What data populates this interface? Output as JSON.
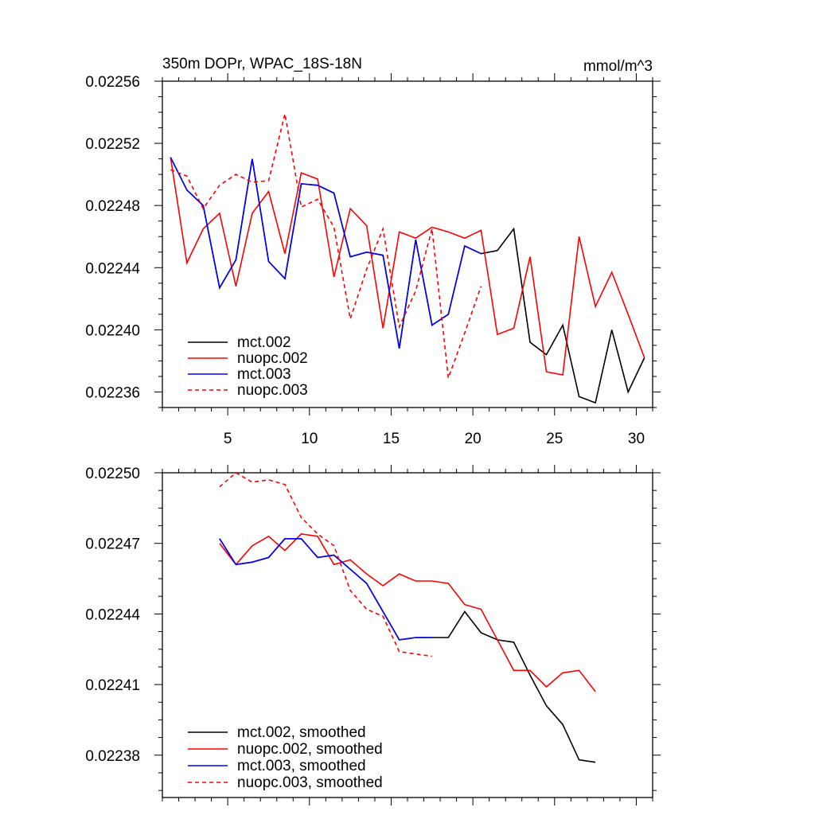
{
  "chart_data": [
    {
      "type": "line",
      "title": "350m DOPr, WPAC_18S-18N",
      "units": "mmol/m^3",
      "xlim": [
        1,
        31
      ],
      "ylim": [
        0.02235,
        0.02256
      ],
      "xticks": [
        5,
        10,
        15,
        20,
        25,
        30
      ],
      "yticks": [
        0.02236,
        0.0224,
        0.02244,
        0.02248,
        0.02252,
        0.02256
      ],
      "ytick_labels": [
        "0.02236",
        "0.02240",
        "0.02244",
        "0.02248",
        "0.02252",
        "0.02256"
      ],
      "legend_position": "bottom-left",
      "series": [
        {
          "name": "mct.002",
          "color": "#000000",
          "dash": "solid",
          "x": [
            1.5,
            2.5,
            3.5,
            4.5,
            5.5,
            6.5,
            7.5,
            8.5,
            9.5,
            10.5,
            11.5,
            12.5,
            13.5,
            14.5,
            15.5,
            16.5,
            17.5,
            18.5,
            19.5,
            20.5,
            21.5,
            22.5,
            23.5,
            24.5,
            25.5,
            26.5,
            27.5,
            28.5,
            29.5,
            30.5
          ],
          "y": [
            0.022511,
            0.02249,
            0.02248,
            0.022427,
            0.022445,
            0.02251,
            0.022444,
            0.022433,
            0.022494,
            0.022493,
            0.022488,
            0.022447,
            0.02245,
            0.022448,
            0.022388,
            0.022458,
            0.022403,
            0.02241,
            0.022454,
            0.022449,
            0.022451,
            0.022465,
            0.022392,
            0.022384,
            0.022403,
            0.022357,
            0.022353,
            0.0224,
            0.02236,
            0.022382
          ]
        },
        {
          "name": "nuopc.002",
          "color": "#ff0000",
          "dash": "solid",
          "x": [
            1.5,
            2.5,
            3.5,
            4.5,
            5.5,
            6.5,
            7.5,
            8.5,
            9.5,
            10.5,
            11.5,
            12.5,
            13.5,
            14.5,
            15.5,
            16.5,
            17.5,
            18.5,
            19.5,
            20.5,
            21.5,
            22.5,
            23.5,
            24.5,
            25.5,
            26.5,
            27.5,
            28.5,
            29.5,
            30.5
          ],
          "y": [
            0.022511,
            0.022443,
            0.022465,
            0.022475,
            0.022428,
            0.022475,
            0.022489,
            0.022449,
            0.022501,
            0.022497,
            0.022434,
            0.022478,
            0.022467,
            0.022401,
            0.022463,
            0.022459,
            0.022466,
            0.022463,
            0.022459,
            0.022464,
            0.022397,
            0.022401,
            0.022447,
            0.022373,
            0.022371,
            0.02246,
            0.022415,
            0.022437,
            0.02241,
            0.022382
          ]
        },
        {
          "name": "mct.003",
          "color": "#0000ff",
          "dash": "solid",
          "x": [
            1.5,
            2.5,
            3.5,
            4.5,
            5.5,
            6.5,
            7.5,
            8.5,
            9.5,
            10.5,
            11.5,
            12.5,
            13.5,
            14.5,
            15.5,
            16.5,
            17.5,
            18.5,
            19.5,
            20.5
          ],
          "y": [
            0.022511,
            0.02249,
            0.02248,
            0.022427,
            0.022445,
            0.02251,
            0.022444,
            0.022433,
            0.022494,
            0.022493,
            0.022488,
            0.022447,
            0.02245,
            0.022448,
            0.022388,
            0.022458,
            0.022403,
            0.02241,
            0.022454,
            0.022449
          ]
        },
        {
          "name": "nuopc.003",
          "color": "#ff0000",
          "dash": "dashed",
          "x": [
            1.5,
            2.5,
            3.5,
            4.5,
            5.5,
            6.5,
            7.5,
            8.5,
            9.5,
            10.5,
            11.5,
            12.5,
            13.5,
            14.5,
            15.5,
            16.5,
            17.5,
            18.5,
            19.5,
            20.5
          ],
          "y": [
            0.022503,
            0.022499,
            0.022478,
            0.022493,
            0.0225,
            0.022495,
            0.022496,
            0.022539,
            0.022479,
            0.022484,
            0.022466,
            0.022407,
            0.022439,
            0.022465,
            0.022402,
            0.022425,
            0.022465,
            0.022369,
            0.022398,
            0.022428
          ]
        }
      ]
    },
    {
      "type": "line",
      "xlim": [
        1,
        31
      ],
      "ylim": [
        0.022362,
        0.0225
      ],
      "xticks": [
        5,
        10,
        15,
        20,
        25,
        30
      ],
      "yticks": [
        0.02238,
        0.02241,
        0.02244,
        0.02247,
        0.0225
      ],
      "ytick_labels": [
        "0.02238",
        "0.02241",
        "0.02244",
        "0.02247",
        "0.02250"
      ],
      "legend_position": "bottom-left",
      "series": [
        {
          "name": "mct.002, smoothed",
          "color": "#000000",
          "dash": "solid",
          "x": [
            4.5,
            5.5,
            6.5,
            7.5,
            8.5,
            9.5,
            10.5,
            11.5,
            12.5,
            13.5,
            14.5,
            15.5,
            16.5,
            17.5,
            18.5,
            19.5,
            20.5,
            21.5,
            22.5,
            23.5,
            24.5,
            25.5,
            26.5,
            27.5
          ],
          "y": [
            0.022472,
            0.022461,
            0.022462,
            0.022464,
            0.022472,
            0.022472,
            0.022464,
            0.022465,
            0.022459,
            0.022453,
            0.022441,
            0.022429,
            0.02243,
            0.02243,
            0.02243,
            0.022441,
            0.022432,
            0.022429,
            0.022428,
            0.022414,
            0.022401,
            0.022393,
            0.022378,
            0.022377
          ]
        },
        {
          "name": "nuopc.002, smoothed",
          "color": "#ff0000",
          "dash": "solid",
          "x": [
            4.5,
            5.5,
            6.5,
            7.5,
            8.5,
            9.5,
            10.5,
            11.5,
            12.5,
            13.5,
            14.5,
            15.5,
            16.5,
            17.5,
            18.5,
            19.5,
            20.5,
            21.5,
            22.5,
            23.5,
            24.5,
            25.5,
            26.5,
            27.5
          ],
          "y": [
            0.02247,
            0.022461,
            0.022469,
            0.022473,
            0.022467,
            0.022474,
            0.022473,
            0.022461,
            0.022463,
            0.022457,
            0.022452,
            0.022457,
            0.022454,
            0.022454,
            0.022453,
            0.022444,
            0.022442,
            0.022429,
            0.022416,
            0.022416,
            0.022409,
            0.022415,
            0.022416,
            0.022407
          ]
        },
        {
          "name": "mct.003, smoothed",
          "color": "#0000ff",
          "dash": "solid",
          "x": [
            4.5,
            5.5,
            6.5,
            7.5,
            8.5,
            9.5,
            10.5,
            11.5,
            12.5,
            13.5,
            14.5,
            15.5,
            16.5,
            17.5
          ],
          "y": [
            0.022472,
            0.022461,
            0.022462,
            0.022464,
            0.022472,
            0.022472,
            0.022464,
            0.022465,
            0.022459,
            0.022453,
            0.022441,
            0.022429,
            0.02243,
            0.02243
          ]
        },
        {
          "name": "nuopc.003, smoothed",
          "color": "#ff0000",
          "dash": "dashed",
          "x": [
            4.5,
            5.5,
            6.5,
            7.5,
            8.5,
            9.5,
            10.5,
            11.5,
            12.5,
            13.5,
            14.5,
            15.5,
            16.5,
            17.5
          ],
          "y": [
            0.022494,
            0.0225,
            0.022496,
            0.022497,
            0.022495,
            0.022481,
            0.022474,
            0.022469,
            0.02245,
            0.022442,
            0.022439,
            0.022424,
            0.022423,
            0.022422
          ]
        }
      ]
    }
  ]
}
